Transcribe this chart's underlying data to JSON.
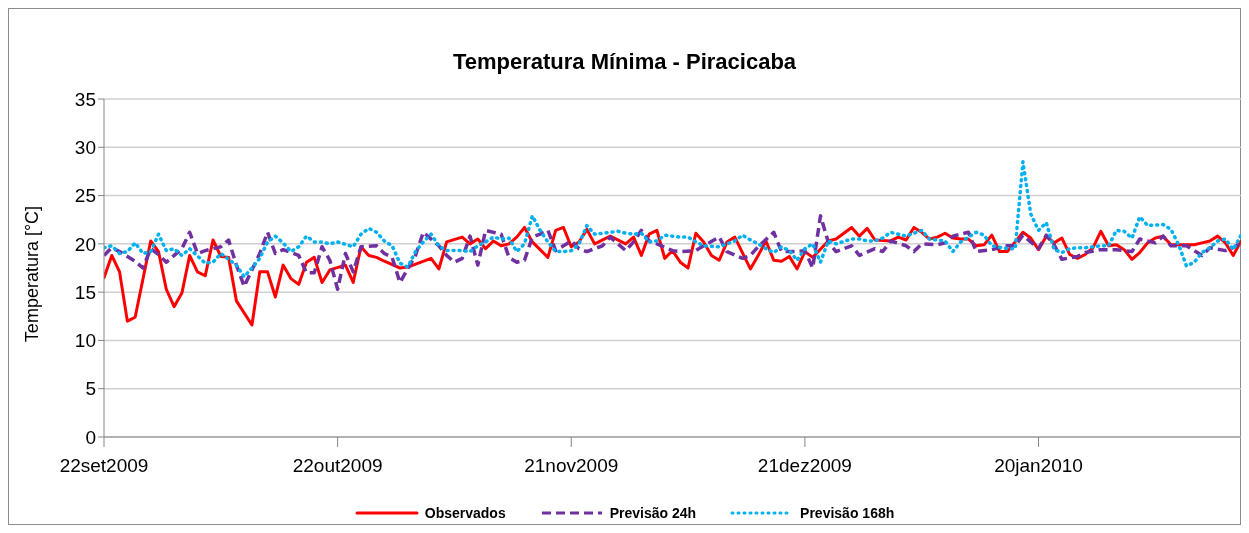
{
  "chart_data": {
    "type": "line",
    "title": "Temperatura Mínima - Piracicaba",
    "ylabel": "Temperatura [°C]",
    "xlim": [
      "2009-09-22",
      "2010-02-15"
    ],
    "xticks": [
      {
        "value": "2009-09-22",
        "label": "22set2009"
      },
      {
        "value": "2009-10-22",
        "label": "22out2009"
      },
      {
        "value": "2009-11-21",
        "label": "21nov2009"
      },
      {
        "value": "2009-12-21",
        "label": "21dez2009"
      },
      {
        "value": "2010-01-20",
        "label": "20jan2010"
      }
    ],
    "ylim": [
      0,
      35
    ],
    "yticks": [
      0,
      5,
      10,
      15,
      20,
      25,
      30,
      35
    ],
    "grid": "y",
    "legend": "bottom",
    "series": [
      {
        "name": "Observados",
        "color": "#ff0000",
        "line_style": "solid",
        "x": [
          "2009-09-22",
          "2009-09-23",
          "2009-09-24",
          "2009-09-25",
          "2009-09-26",
          "2009-09-28",
          "2009-09-29",
          "2009-09-30",
          "2009-10-01",
          "2009-10-02",
          "2009-10-03",
          "2009-10-04",
          "2009-10-05",
          "2009-10-06",
          "2009-10-07",
          "2009-10-08",
          "2009-10-09",
          "2009-10-11",
          "2009-10-12",
          "2009-10-13",
          "2009-10-14",
          "2009-10-15",
          "2009-10-16",
          "2009-10-17",
          "2009-10-18",
          "2009-10-19",
          "2009-10-20",
          "2009-10-21",
          "2009-10-23",
          "2009-10-24",
          "2009-10-25",
          "2009-10-26",
          "2009-10-27",
          "2009-10-28",
          "2009-10-30",
          "2009-10-31",
          "2009-11-03",
          "2009-11-04",
          "2009-11-05",
          "2009-11-07",
          "2009-11-08",
          "2009-11-09",
          "2009-11-10",
          "2009-11-11",
          "2009-11-12",
          "2009-11-13",
          "2009-11-14",
          "2009-11-15",
          "2009-11-16",
          "2009-11-18",
          "2009-11-19",
          "2009-11-20",
          "2009-11-21",
          "2009-11-22",
          "2009-11-23",
          "2009-11-24",
          "2009-11-26",
          "2009-11-28",
          "2009-11-29",
          "2009-11-30",
          "2009-12-01",
          "2009-12-02",
          "2009-12-03",
          "2009-12-04",
          "2009-12-05",
          "2009-12-06",
          "2009-12-07",
          "2009-12-08",
          "2009-12-09",
          "2009-12-10",
          "2009-12-11",
          "2009-12-12",
          "2009-12-14",
          "2009-12-15",
          "2009-12-16",
          "2009-12-17",
          "2009-12-18",
          "2009-12-19",
          "2009-12-20",
          "2009-12-21",
          "2009-12-22",
          "2009-12-24",
          "2009-12-25",
          "2009-12-27",
          "2009-12-28",
          "2009-12-29",
          "2009-12-30",
          "2010-01-01",
          "2010-01-02",
          "2010-01-03",
          "2010-01-04",
          "2010-01-05",
          "2010-01-06",
          "2010-01-07",
          "2010-01-08",
          "2010-01-09",
          "2010-01-10",
          "2010-01-11",
          "2010-01-12",
          "2010-01-13",
          "2010-01-14",
          "2010-01-15",
          "2010-01-16",
          "2010-01-18",
          "2010-01-19",
          "2010-01-20",
          "2010-01-21",
          "2010-01-22",
          "2010-01-23",
          "2010-01-24",
          "2010-01-25",
          "2010-01-26",
          "2010-01-27",
          "2010-01-28",
          "2010-01-29",
          "2010-01-30",
          "2010-01-31",
          "2010-02-01",
          "2010-02-02",
          "2010-02-03",
          "2010-02-04",
          "2010-02-05",
          "2010-02-06",
          "2010-02-08",
          "2010-02-09",
          "2010-02-10",
          "2010-02-11",
          "2010-02-12",
          "2010-02-13",
          "2010-02-14",
          "2010-02-15"
        ],
        "values": [
          16.5,
          18.8,
          17.1,
          12.0,
          12.4,
          20.3,
          19.2,
          15.3,
          13.5,
          14.9,
          18.8,
          17.1,
          16.7,
          20.4,
          18.7,
          18.6,
          14.1,
          11.6,
          17.1,
          17.1,
          14.5,
          17.8,
          16.4,
          15.8,
          18.1,
          18.6,
          16.0,
          17.3,
          17.8,
          16.0,
          19.7,
          18.8,
          18.6,
          18.2,
          17.5,
          17.6,
          18.5,
          17.4,
          20.2,
          20.7,
          20.0,
          20.5,
          19.5,
          20.3,
          19.8,
          20.0,
          20.7,
          21.7,
          20.2,
          18.6,
          21.4,
          21.7,
          19.7,
          20.2,
          21.5,
          20.0,
          20.8,
          20.0,
          20.7,
          18.8,
          21.0,
          21.4,
          18.5,
          19.3,
          18.1,
          17.5,
          21.1,
          20.2,
          18.8,
          18.3,
          20.2,
          20.7,
          17.4,
          18.8,
          20.3,
          18.3,
          18.2,
          18.7,
          17.4,
          19.2,
          18.6,
          20.3,
          20.5,
          21.7,
          20.8,
          21.6,
          20.4,
          20.3,
          20.7,
          20.4,
          21.7,
          21.2,
          20.5,
          20.7,
          21.1,
          20.6,
          20.5,
          20.5,
          19.8,
          19.9,
          20.9,
          19.2,
          19.2,
          21.2,
          20.6,
          19.4,
          20.8,
          20.1,
          20.6,
          18.9,
          18.5,
          18.9,
          19.6,
          21.3,
          19.8,
          19.9,
          19.4,
          18.4,
          19.1,
          20.1,
          20.6,
          20.8,
          19.9,
          19.9,
          19.9,
          20.1,
          20.3,
          20.8,
          20.1,
          18.8,
          20.3
        ]
      },
      {
        "name": "Previsão 24h",
        "color": "#7030a0",
        "line_style": "dashed",
        "x": [
          "2009-09-22",
          "2009-09-23",
          "2009-09-24",
          "2009-09-26",
          "2009-09-27",
          "2009-09-28",
          "2009-09-29",
          "2009-09-30",
          "2009-10-02",
          "2009-10-03",
          "2009-10-04",
          "2009-10-05",
          "2009-10-07",
          "2009-10-08",
          "2009-10-09",
          "2009-10-10",
          "2009-10-12",
          "2009-10-13",
          "2009-10-14",
          "2009-10-15",
          "2009-10-17",
          "2009-10-18",
          "2009-10-19",
          "2009-10-20",
          "2009-10-21",
          "2009-10-22",
          "2009-10-23",
          "2009-10-24",
          "2009-10-25",
          "2009-10-27",
          "2009-10-28",
          "2009-10-29",
          "2009-10-30",
          "2009-10-31",
          "2009-11-01",
          "2009-11-02",
          "2009-11-04",
          "2009-11-05",
          "2009-11-06",
          "2009-11-07",
          "2009-11-08",
          "2009-11-09",
          "2009-11-10",
          "2009-11-12",
          "2009-11-13",
          "2009-11-14",
          "2009-11-15",
          "2009-11-16",
          "2009-11-17",
          "2009-11-18",
          "2009-11-19",
          "2009-11-20",
          "2009-11-21",
          "2009-11-22",
          "2009-11-23",
          "2009-11-24",
          "2009-11-25",
          "2009-11-26",
          "2009-11-28",
          "2009-11-29",
          "2009-11-30",
          "2009-12-01",
          "2009-12-02",
          "2009-12-04",
          "2009-12-05",
          "2009-12-07",
          "2009-12-08",
          "2009-12-10",
          "2009-12-11",
          "2009-12-13",
          "2009-12-14",
          "2009-12-15",
          "2009-12-17",
          "2009-12-18",
          "2009-12-20",
          "2009-12-21",
          "2009-12-22",
          "2009-12-23",
          "2009-12-24",
          "2009-12-25",
          "2009-12-27",
          "2009-12-28",
          "2009-12-30",
          "2009-12-31",
          "2010-01-01",
          "2010-01-03",
          "2010-01-04",
          "2010-01-05",
          "2010-01-07",
          "2010-01-08",
          "2010-01-09",
          "2010-01-11",
          "2010-01-12",
          "2010-01-14",
          "2010-01-16",
          "2010-01-17",
          "2010-01-18",
          "2010-01-20",
          "2010-01-21",
          "2010-01-22",
          "2010-01-23",
          "2010-01-25",
          "2010-01-26",
          "2010-01-28",
          "2010-01-30",
          "2010-02-01",
          "2010-02-02",
          "2010-02-04",
          "2010-02-05",
          "2010-02-06",
          "2010-02-08",
          "2010-02-10",
          "2010-02-11",
          "2010-02-13",
          "2010-02-14",
          "2010-02-15"
        ],
        "values": [
          18.8,
          19.6,
          19.2,
          18.2,
          17.5,
          19.5,
          18.9,
          18.1,
          19.5,
          21.2,
          19.0,
          19.3,
          19.7,
          20.4,
          17.8,
          15.6,
          19.0,
          21.2,
          19.0,
          19.4,
          18.8,
          17.0,
          17.0,
          19.7,
          18.3,
          15.3,
          19.0,
          17.1,
          19.7,
          19.8,
          19.0,
          18.6,
          16.0,
          17.4,
          18.8,
          21.2,
          19.8,
          18.8,
          18.1,
          18.5,
          20.8,
          17.8,
          21.4,
          21.0,
          18.6,
          18.1,
          18.3,
          20.7,
          21.0,
          21.4,
          19.3,
          19.8,
          20.3,
          19.5,
          19.2,
          19.5,
          19.8,
          20.7,
          19.3,
          20.2,
          21.4,
          20.3,
          20.0,
          19.3,
          19.2,
          19.3,
          19.8,
          20.7,
          19.2,
          18.5,
          18.8,
          19.7,
          21.2,
          19.2,
          19.2,
          19.3,
          17.5,
          22.9,
          20.2,
          19.2,
          19.8,
          18.8,
          19.5,
          19.2,
          20.3,
          19.8,
          19.2,
          20.0,
          19.9,
          20.1,
          20.8,
          21.2,
          19.2,
          19.4,
          19.8,
          19.8,
          20.9,
          19.5,
          20.9,
          19.9,
          18.4,
          18.7,
          19.1,
          19.4,
          19.4,
          19.2,
          20.5,
          20.1,
          20.8,
          19.8,
          19.8,
          18.8,
          19.6,
          19.3,
          19.6,
          20.1
        ]
      },
      {
        "name": "Previsão 168h",
        "color": "#00b0f0",
        "line_style": "dotted",
        "x": [
          "2009-09-22",
          "2009-09-23",
          "2009-09-24",
          "2009-09-25",
          "2009-09-26",
          "2009-09-27",
          "2009-09-28",
          "2009-09-29",
          "2009-09-30",
          "2009-10-01",
          "2009-10-02",
          "2009-10-03",
          "2009-10-05",
          "2009-10-06",
          "2009-10-07",
          "2009-10-09",
          "2009-10-10",
          "2009-10-11",
          "2009-10-12",
          "2009-10-13",
          "2009-10-14",
          "2009-10-15",
          "2009-10-16",
          "2009-10-17",
          "2009-10-18",
          "2009-10-19",
          "2009-10-20",
          "2009-10-21",
          "2009-10-22",
          "2009-10-24",
          "2009-10-25",
          "2009-10-26",
          "2009-10-27",
          "2009-10-28",
          "2009-10-29",
          "2009-10-30",
          "2009-10-31",
          "2009-11-01",
          "2009-11-02",
          "2009-11-03",
          "2009-11-04",
          "2009-11-05",
          "2009-11-07",
          "2009-11-08",
          "2009-11-09",
          "2009-11-10",
          "2009-11-11",
          "2009-11-12",
          "2009-11-13",
          "2009-11-14",
          "2009-11-15",
          "2009-11-16",
          "2009-11-17",
          "2009-11-18",
          "2009-11-19",
          "2009-11-20",
          "2009-11-21",
          "2009-11-22",
          "2009-11-23",
          "2009-11-24",
          "2009-11-25",
          "2009-11-27",
          "2009-11-28",
          "2009-11-29",
          "2009-11-30",
          "2009-12-01",
          "2009-12-02",
          "2009-12-03",
          "2009-12-05",
          "2009-12-06",
          "2009-12-07",
          "2009-12-08",
          "2009-12-10",
          "2009-12-11",
          "2009-12-12",
          "2009-12-13",
          "2009-12-14",
          "2009-12-15",
          "2009-12-16",
          "2009-12-17",
          "2009-12-18",
          "2009-12-19",
          "2009-12-20",
          "2009-12-21",
          "2009-12-22",
          "2009-12-23",
          "2009-12-24",
          "2009-12-25",
          "2009-12-27",
          "2009-12-28",
          "2009-12-29",
          "2009-12-30",
          "2009-12-31",
          "2010-01-01",
          "2010-01-03",
          "2010-01-05",
          "2010-01-06",
          "2010-01-08",
          "2010-01-09",
          "2010-01-10",
          "2010-01-11",
          "2010-01-12",
          "2010-01-13",
          "2010-01-14",
          "2010-01-16",
          "2010-01-17",
          "2010-01-18",
          "2010-01-19",
          "2010-01-20",
          "2010-01-21",
          "2010-01-22",
          "2010-01-23",
          "2010-01-24",
          "2010-01-25",
          "2010-01-26",
          "2010-01-28",
          "2010-01-29",
          "2010-01-30",
          "2010-01-31",
          "2010-02-01",
          "2010-02-02",
          "2010-02-03",
          "2010-02-05",
          "2010-02-06",
          "2010-02-07",
          "2010-02-08",
          "2010-02-09",
          "2010-02-10",
          "2010-02-11",
          "2010-02-12",
          "2010-02-13",
          "2010-02-14",
          "2010-02-15"
        ],
        "values": [
          19.6,
          19.8,
          19.0,
          19.2,
          20.1,
          19.0,
          19.2,
          21.0,
          19.3,
          19.5,
          18.8,
          19.5,
          18.0,
          18.1,
          19.0,
          17.8,
          16.6,
          17.5,
          18.5,
          20.2,
          20.8,
          20.1,
          19.2,
          19.7,
          20.8,
          20.2,
          20.2,
          20.0,
          20.2,
          19.7,
          21.0,
          21.6,
          21.2,
          20.3,
          19.8,
          18.0,
          17.6,
          19.2,
          20.2,
          21.0,
          19.8,
          19.3,
          19.3,
          19.2,
          19.8,
          20.2,
          20.7,
          20.5,
          20.6,
          19.2,
          20.0,
          22.9,
          21.4,
          20.2,
          19.2,
          19.2,
          19.3,
          20.0,
          21.9,
          21.0,
          21.1,
          21.3,
          21.1,
          21.0,
          21.1,
          20.2,
          20.3,
          20.9,
          20.7,
          20.7,
          20.2,
          19.8,
          19.7,
          20.0,
          20.3,
          20.9,
          20.4,
          20.0,
          19.5,
          19.1,
          19.7,
          19.3,
          18.3,
          19.5,
          20.0,
          18.1,
          20.3,
          20.0,
          20.5,
          20.5,
          20.3,
          20.3,
          20.6,
          21.2,
          20.8,
          21.4,
          20.5,
          20.3,
          19.2,
          20.2,
          20.7,
          21.2,
          20.9,
          19.8,
          19.5,
          19.5,
          28.5,
          23.1,
          21.4,
          22.2,
          19.4,
          19.1,
          19.5,
          19.6,
          19.6,
          19.8,
          19.8,
          21.4,
          21.3,
          20.6,
          22.8,
          21.9,
          22.0,
          21.5,
          19.9,
          17.7,
          18.1,
          19.1,
          19.6,
          20.3,
          20.5,
          19.4,
          20.9
        ]
      }
    ]
  }
}
